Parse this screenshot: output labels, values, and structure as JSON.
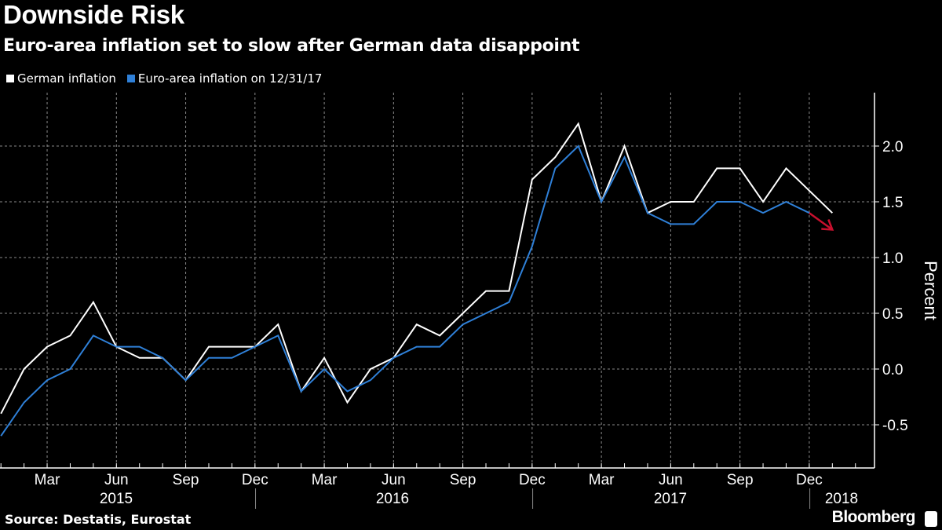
{
  "header": {
    "title": "Downside Risk",
    "subtitle": "Euro-area inflation set to slow after German data disappoint"
  },
  "footer": {
    "source": "Source: Destatis, Eurostat",
    "logo": "Bloomberg"
  },
  "chart_data": {
    "type": "line",
    "title": "Downside Risk",
    "subtitle": "Euro-area inflation set to slow after German data disappoint",
    "ylabel": "Percent",
    "ylim": [
      -0.9,
      2.4
    ],
    "y_ticks": [
      "-0.5",
      "0.0",
      "0.5",
      "1.0",
      "1.5",
      "2.0"
    ],
    "y_axis_side": "right",
    "grid": true,
    "legend_placement": "top-left",
    "x_start": "2015-01",
    "x_month_labels": [
      "Mar",
      "Jun",
      "Sep",
      "Dec",
      "Mar",
      "Jun",
      "Sep",
      "Dec",
      "Mar",
      "Jun",
      "Sep",
      "Dec"
    ],
    "x_year_labels": [
      "2015",
      "2016",
      "2017",
      "2018"
    ],
    "series": [
      {
        "name": "German inflation",
        "color": "#ffffff",
        "values": [
          -0.4,
          0.0,
          0.2,
          0.3,
          0.6,
          0.2,
          0.1,
          0.1,
          -0.1,
          0.2,
          0.2,
          0.2,
          0.4,
          -0.2,
          0.1,
          -0.3,
          0.0,
          0.1,
          0.4,
          0.3,
          0.5,
          0.7,
          0.7,
          1.7,
          1.9,
          2.2,
          1.5,
          2.0,
          1.4,
          1.5,
          1.5,
          1.8,
          1.8,
          1.5,
          1.8,
          1.6,
          1.4
        ]
      },
      {
        "name": "Euro-area inflation on 12/31/17",
        "color": "#2f80d8",
        "values": [
          -0.6,
          -0.3,
          -0.1,
          0.0,
          0.3,
          0.2,
          0.2,
          0.1,
          -0.1,
          0.1,
          0.1,
          0.2,
          0.3,
          -0.2,
          0.0,
          -0.2,
          -0.1,
          0.1,
          0.2,
          0.2,
          0.4,
          0.5,
          0.6,
          1.1,
          1.8,
          2.0,
          1.5,
          1.9,
          1.4,
          1.3,
          1.3,
          1.5,
          1.5,
          1.4,
          1.5,
          1.4
        ]
      }
    ],
    "annotation": {
      "type": "arrow",
      "color": "#c8102e",
      "from": {
        "month": "2017-12",
        "value": 1.4
      },
      "to": {
        "month": "2018-01",
        "value": 1.25
      }
    }
  }
}
